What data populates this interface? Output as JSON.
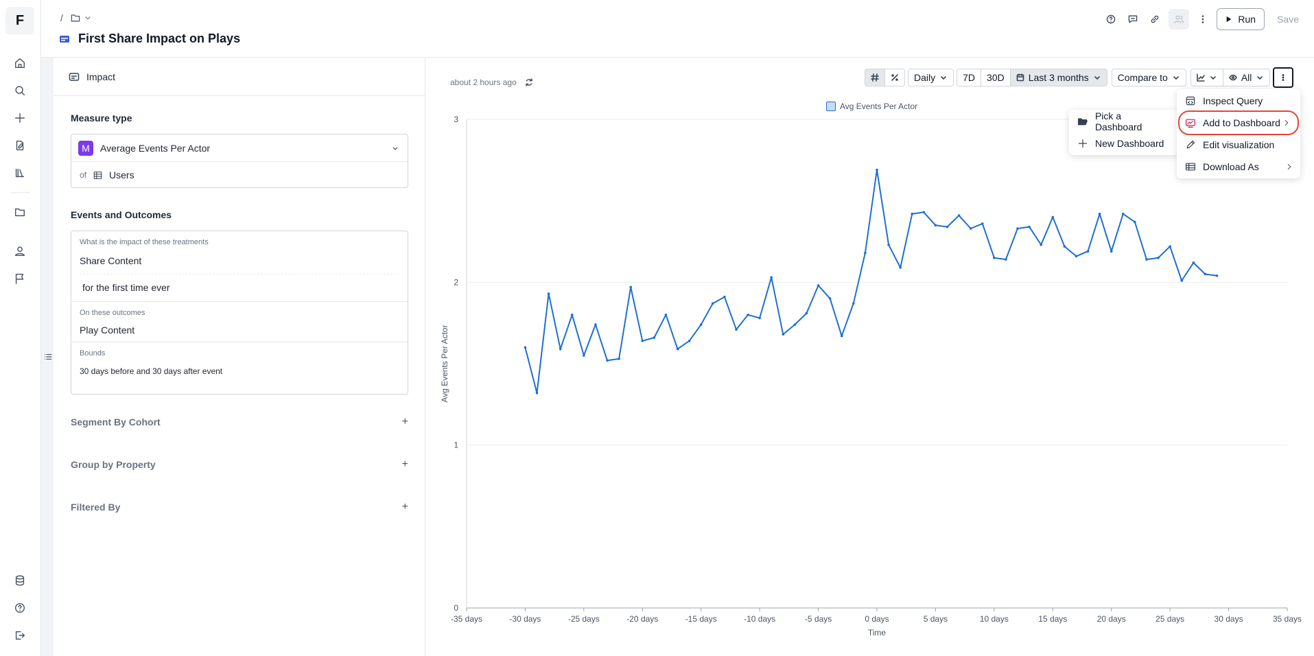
{
  "rail": {
    "logo": "F",
    "icons": [
      "home-icon",
      "search-icon",
      "plus-icon",
      "note-icon",
      "library-icon",
      "folder-icon",
      "user-icon",
      "flag-icon",
      "database-icon",
      "help-icon",
      "logout-icon"
    ]
  },
  "header": {
    "breadcrumb_separator": "/",
    "title": "First Share Impact on Plays",
    "run_label": "Run",
    "save_label": "Save"
  },
  "panel": {
    "tab_label": "Impact",
    "measure_type_label": "Measure type",
    "measure_badge": "M",
    "measure_value": "Average Events Per Actor",
    "of_label": "of",
    "of_value": "Users",
    "events_label": "Events and Outcomes",
    "treatment_prompt": "What is the impact of these treatments",
    "treatment_event": "Share Content",
    "treatment_qualifier": "for the first time ever",
    "outcomes_prompt": "On these outcomes",
    "outcome_event": "Play Content",
    "bounds_label": "Bounds",
    "bounds_value": "30 days before and 30 days after event",
    "segment_label": "Segment By Cohort",
    "group_label": "Group by Property",
    "filter_label": "Filtered By"
  },
  "main": {
    "updated": "about 2 hours ago",
    "toolbar": {
      "granularity": "Daily",
      "range_7d": "7D",
      "range_30d": "30D",
      "date_range": "Last 3 months",
      "compare": "Compare to",
      "filter_all": "All"
    }
  },
  "menu": {
    "items": [
      "Inspect Query",
      "Add to Dashboard",
      "Edit visualization",
      "Download As"
    ]
  },
  "submenu": {
    "items": [
      "Pick a Dashboard",
      "New Dashboard"
    ]
  },
  "colors": {
    "line": "#1d6fd1",
    "highlight": "#e0473b",
    "badge": "#7c3aed"
  },
  "chart_data": {
    "type": "line",
    "title": "",
    "legend": "Avg Events Per Actor",
    "xlabel": "Time",
    "ylabel": "Avg Events Per Actor",
    "xlim": [
      -35,
      35
    ],
    "ylim": [
      0,
      3
    ],
    "x_ticks": [
      -35,
      -30,
      -25,
      -20,
      -15,
      -10,
      -5,
      0,
      5,
      10,
      15,
      20,
      25,
      30,
      35
    ],
    "x_tick_labels": [
      "-35 days",
      "-30 days",
      "-25 days",
      "-20 days",
      "-15 days",
      "-10 days",
      "-5 days",
      "0 days",
      "5 days",
      "10 days",
      "15 days",
      "20 days",
      "25 days",
      "30 days",
      "35 days"
    ],
    "y_ticks": [
      0,
      1,
      2,
      3
    ],
    "grid": "horizontal",
    "series": [
      {
        "name": "Avg Events Per Actor",
        "x": [
          -30,
          -29,
          -28,
          -27,
          -26,
          -25,
          -24,
          -23,
          -22,
          -21,
          -20,
          -19,
          -18,
          -17,
          -16,
          -15,
          -14,
          -13,
          -12,
          -11,
          -10,
          -9,
          -8,
          -7,
          -6,
          -5,
          -4,
          -3,
          -2,
          -1,
          0,
          1,
          2,
          3,
          4,
          5,
          6,
          7,
          8,
          9,
          10,
          11,
          12,
          13,
          14,
          15,
          16,
          17,
          18,
          19,
          20,
          21,
          22,
          23,
          24,
          25,
          26,
          27,
          28,
          29
        ],
        "y": [
          1.6,
          1.32,
          1.93,
          1.59,
          1.8,
          1.55,
          1.74,
          1.52,
          1.53,
          1.97,
          1.64,
          1.66,
          1.8,
          1.59,
          1.64,
          1.74,
          1.87,
          1.91,
          1.71,
          1.8,
          1.78,
          2.03,
          1.68,
          1.74,
          1.81,
          1.98,
          1.9,
          1.67,
          1.87,
          2.18,
          2.69,
          2.23,
          2.09,
          2.42,
          2.43,
          2.35,
          2.34,
          2.41,
          2.33,
          2.36,
          2.15,
          2.14,
          2.33,
          2.34,
          2.23,
          2.4,
          2.22,
          2.16,
          2.19,
          2.42,
          2.19,
          2.42,
          2.37,
          2.14,
          2.15,
          2.22,
          2.01,
          2.12,
          2.05,
          2.04
        ]
      }
    ]
  }
}
